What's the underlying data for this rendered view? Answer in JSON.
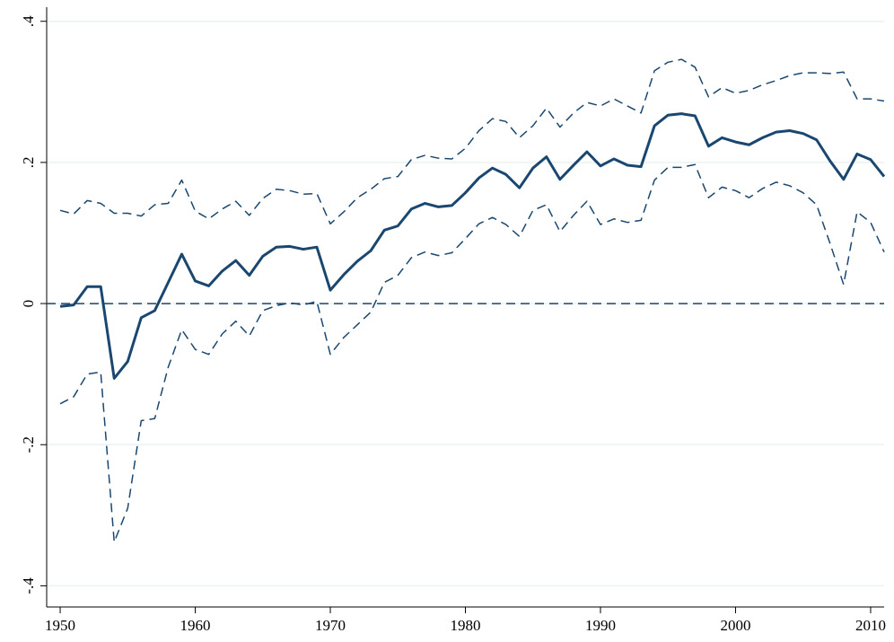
{
  "chart_data": {
    "type": "line",
    "x": [
      1950,
      1951,
      1952,
      1953,
      1954,
      1955,
      1956,
      1957,
      1958,
      1959,
      1960,
      1961,
      1962,
      1963,
      1964,
      1965,
      1966,
      1967,
      1968,
      1969,
      1970,
      1971,
      1972,
      1973,
      1974,
      1975,
      1976,
      1977,
      1978,
      1979,
      1980,
      1981,
      1982,
      1983,
      1984,
      1985,
      1986,
      1987,
      1988,
      1989,
      1990,
      1991,
      1992,
      1993,
      1994,
      1995,
      1996,
      1997,
      1998,
      1999,
      2000,
      2001,
      2002,
      2003,
      2004,
      2005,
      2006,
      2007,
      2008,
      2009,
      2010,
      2011
    ],
    "series": [
      {
        "color": "#1a476f",
        "dash": false,
        "values": [
          -0.004,
          -0.002,
          0.024,
          0.024,
          -0.106,
          -0.082,
          -0.02,
          -0.01,
          0.03,
          0.07,
          0.032,
          0.025,
          0.046,
          0.061,
          0.04,
          0.067,
          0.08,
          0.081,
          0.077,
          0.08,
          0.019,
          0.041,
          0.06,
          0.075,
          0.104,
          0.11,
          0.134,
          0.142,
          0.137,
          0.139,
          0.157,
          0.178,
          0.192,
          0.183,
          0.164,
          0.192,
          0.208,
          0.176,
          0.196,
          0.215,
          0.195,
          0.205,
          0.196,
          0.194,
          0.252,
          0.267,
          0.269,
          0.266,
          0.223,
          0.235,
          0.229,
          0.225,
          0.235,
          0.243,
          0.245,
          0.241,
          0.232,
          0.202,
          0.176,
          0.212,
          0.204,
          0.18
        ]
      },
      {
        "color": "#1a476f",
        "dash": true,
        "values": [
          0.132,
          0.127,
          0.146,
          0.142,
          0.128,
          0.128,
          0.124,
          0.14,
          0.142,
          0.175,
          0.131,
          0.12,
          0.134,
          0.145,
          0.125,
          0.149,
          0.162,
          0.16,
          0.155,
          0.156,
          0.113,
          0.13,
          0.15,
          0.162,
          0.177,
          0.18,
          0.204,
          0.21,
          0.206,
          0.205,
          0.22,
          0.245,
          0.262,
          0.258,
          0.235,
          0.252,
          0.277,
          0.25,
          0.27,
          0.285,
          0.28,
          0.29,
          0.28,
          0.27,
          0.33,
          0.342,
          0.346,
          0.335,
          0.293,
          0.306,
          0.298,
          0.302,
          0.31,
          0.316,
          0.323,
          0.327,
          0.327,
          0.326,
          0.328,
          0.29,
          0.29,
          0.287
        ]
      },
      {
        "color": "#1a476f",
        "dash": true,
        "values": [
          -0.142,
          -0.132,
          -0.1,
          -0.097,
          -0.338,
          -0.29,
          -0.166,
          -0.163,
          -0.09,
          -0.037,
          -0.065,
          -0.072,
          -0.043,
          -0.025,
          -0.046,
          -0.01,
          -0.003,
          0.001,
          -0.002,
          0.003,
          -0.072,
          -0.048,
          -0.03,
          -0.012,
          0.03,
          0.04,
          0.065,
          0.073,
          0.068,
          0.072,
          0.092,
          0.113,
          0.122,
          0.112,
          0.095,
          0.132,
          0.14,
          0.102,
          0.125,
          0.145,
          0.112,
          0.12,
          0.115,
          0.118,
          0.175,
          0.193,
          0.193,
          0.197,
          0.15,
          0.165,
          0.16,
          0.15,
          0.163,
          0.172,
          0.167,
          0.157,
          0.14,
          0.085,
          0.027,
          0.13,
          0.115,
          0.073
        ]
      }
    ],
    "reference_line": 0,
    "xlim": [
      1949,
      2011
    ],
    "xticks": [
      1950,
      1960,
      1970,
      1980,
      1990,
      2000,
      2010
    ],
    "ylim": [
      -0.43,
      0.42
    ],
    "yticks": [
      {
        "value": -0.4,
        "label": "-.4"
      },
      {
        "value": -0.2,
        "label": "-.2"
      },
      0,
      {
        "value": 0.2,
        "label": ".2"
      },
      {
        "value": 0.4,
        "label": ".4"
      }
    ],
    "grid": true
  }
}
